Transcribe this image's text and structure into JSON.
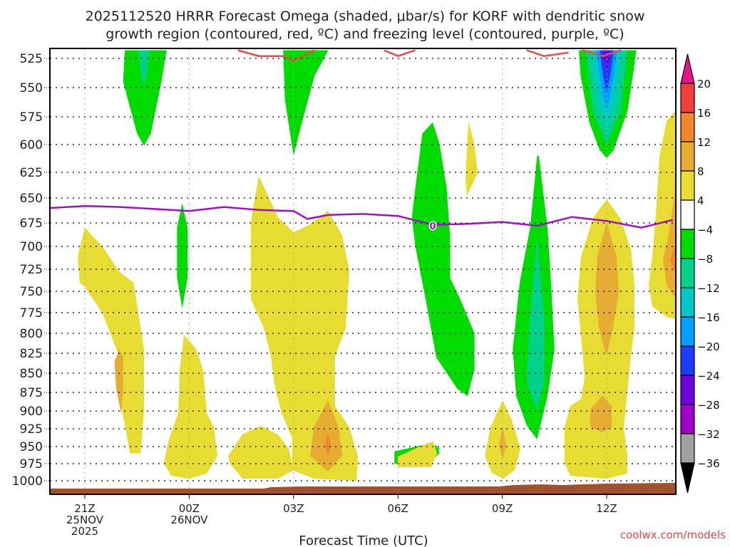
{
  "chart_data": {
    "type": "heatmap",
    "title_lines": [
      "2025112520 HRRR Forecast Omega (shaded, μbar/s) for KORF with dendritic snow",
      "growth region (contoured, red, ºC) and freezing level (contoured, purple, ºC)"
    ],
    "xlabel": "Forecast Time (UTC)",
    "ylabel": "",
    "credit": "coolwx.com/models",
    "y_axis": {
      "units": "hPa",
      "range": [
        525,
        1000
      ],
      "inverted": true,
      "ticks": [
        "525",
        "550",
        "575",
        "600",
        "625",
        "650",
        "675",
        "700",
        "725",
        "750",
        "775",
        "800",
        "825",
        "850",
        "875",
        "900",
        "925",
        "950",
        "975",
        "1000"
      ]
    },
    "x_axis": {
      "range_hours_from_21Z": [
        -1.0,
        16.9
      ],
      "ticks": [
        {
          "hour": 0,
          "lines": [
            "21Z",
            "25NOV",
            "2025"
          ]
        },
        {
          "hour": 3,
          "lines": [
            "00Z",
            "26NOV"
          ]
        },
        {
          "hour": 6,
          "lines": [
            "03Z"
          ]
        },
        {
          "hour": 9,
          "lines": [
            "06Z"
          ]
        },
        {
          "hour": 12,
          "lines": [
            "09Z"
          ]
        },
        {
          "hour": 15,
          "lines": [
            "12Z"
          ]
        }
      ]
    },
    "grid": true,
    "colorbar": {
      "placement": "right",
      "labels": [
        "20",
        "16",
        "12",
        "8",
        "4",
        "-4",
        "-8",
        "-12",
        "-16",
        "-20",
        "-24",
        "-28",
        "-32",
        "-36"
      ],
      "bins": [
        {
          "range": ">20",
          "color": "#e8148c"
        },
        {
          "range": "16 to 20",
          "color": "#f0403c"
        },
        {
          "range": "12 to 16",
          "color": "#f0872d"
        },
        {
          "range": "8 to 12",
          "color": "#e6ad32"
        },
        {
          "range": "4 to 8",
          "color": "#e6dc32"
        },
        {
          "range": "-4 to 4",
          "color": "#ffffff"
        },
        {
          "range": "-8 to -4",
          "color": "#00dc00"
        },
        {
          "range": "-12 to -8",
          "color": "#00d28c"
        },
        {
          "range": "-16 to -12",
          "color": "#00c8c8"
        },
        {
          "range": "-20 to -16",
          "color": "#00a0ff"
        },
        {
          "range": "-24 to -20",
          "color": "#1e3cff"
        },
        {
          "range": "-28 to -24",
          "color": "#6e00dc"
        },
        {
          "range": "-32 to -28",
          "color": "#a000c8"
        },
        {
          "range": "-36 to -32",
          "color": "#a0a0a0"
        },
        {
          "range": "<-36",
          "color": "#000000"
        }
      ]
    },
    "freezing_level": {
      "label": "0",
      "color": "#a010c8",
      "points_hour_hpa": [
        [
          -1.0,
          660
        ],
        [
          0,
          658
        ],
        [
          1,
          659
        ],
        [
          2,
          661
        ],
        [
          3,
          663
        ],
        [
          4,
          659
        ],
        [
          5,
          662
        ],
        [
          6,
          663
        ],
        [
          6.4,
          671
        ],
        [
          7,
          667
        ],
        [
          8,
          666
        ],
        [
          9,
          668
        ],
        [
          10,
          677
        ],
        [
          11,
          676
        ],
        [
          12,
          674
        ],
        [
          13,
          678
        ],
        [
          14,
          669
        ],
        [
          15,
          673
        ],
        [
          16,
          680
        ],
        [
          16.9,
          672
        ]
      ]
    },
    "dgz_contour": {
      "color": "#f04646",
      "segments_hour_hpa": [
        [
          [
            4.4,
            518
          ],
          [
            5,
            523
          ],
          [
            5.7,
            523
          ],
          [
            6,
            527
          ],
          [
            6.6,
            518
          ]
        ],
        [
          [
            8.6,
            518
          ],
          [
            9,
            523
          ],
          [
            9.5,
            518
          ]
        ],
        [
          [
            12.7,
            518
          ],
          [
            13.2,
            523
          ],
          [
            13.9,
            520
          ]
        ],
        [
          [
            14.3,
            518
          ],
          [
            14.9,
            523
          ],
          [
            15.4,
            518
          ]
        ]
      ]
    },
    "regions": [
      {
        "name": "green-blob-1",
        "value_range": "-8 to -4",
        "color": "#00dc00",
        "pts": [
          [
            1.15,
            518
          ],
          [
            1.1,
            545
          ],
          [
            1.5,
            590
          ],
          [
            1.7,
            601
          ],
          [
            1.9,
            590
          ],
          [
            2.2,
            545
          ],
          [
            2.35,
            518
          ]
        ]
      },
      {
        "name": "teal-1",
        "value_range": "-12 to -8",
        "color": "#00d28c",
        "pts": [
          [
            1.55,
            518
          ],
          [
            1.6,
            535
          ],
          [
            1.7,
            550
          ],
          [
            1.8,
            535
          ],
          [
            1.85,
            518
          ]
        ]
      },
      {
        "name": "green-blob-2",
        "value_range": "-8 to -4",
        "color": "#00dc00",
        "pts": [
          [
            2.65,
            680
          ],
          [
            2.8,
            655
          ],
          [
            2.95,
            680
          ],
          [
            2.95,
            735
          ],
          [
            2.8,
            770
          ],
          [
            2.65,
            735
          ]
        ]
      },
      {
        "name": "green-sliver",
        "value_range": "-8 to -4",
        "color": "#00dc00",
        "pts": [
          [
            2.95,
            830
          ],
          [
            3.0,
            810
          ],
          [
            3.05,
            830
          ],
          [
            3.0,
            850
          ]
        ]
      },
      {
        "name": "green-blob-3",
        "value_range": "-8 to -4",
        "color": "#00dc00",
        "pts": [
          [
            5.7,
            518
          ],
          [
            5.75,
            560
          ],
          [
            5.9,
            590
          ],
          [
            6.0,
            610
          ],
          [
            6.2,
            585
          ],
          [
            6.6,
            540
          ],
          [
            7.0,
            518
          ]
        ]
      },
      {
        "name": "green-blob-4",
        "value_range": "-8 to -4",
        "color": "#00dc00",
        "pts": [
          [
            9.7,
            590
          ],
          [
            9.5,
            640
          ],
          [
            9.4,
            670
          ],
          [
            9.5,
            700
          ],
          [
            9.8,
            760
          ],
          [
            10.1,
            830
          ],
          [
            10.7,
            870
          ],
          [
            11.0,
            880
          ],
          [
            11.2,
            845
          ],
          [
            11.2,
            800
          ],
          [
            10.8,
            760
          ],
          [
            10.5,
            735
          ],
          [
            10.5,
            690
          ],
          [
            10.4,
            640
          ],
          [
            10.2,
            600
          ],
          [
            10.0,
            580
          ]
        ]
      },
      {
        "name": "green-blob-5",
        "value_range": "-8 to -4",
        "color": "#00dc00",
        "pts": [
          [
            13.0,
            610
          ],
          [
            12.8,
            680
          ],
          [
            12.5,
            740
          ],
          [
            12.3,
            820
          ],
          [
            12.4,
            880
          ],
          [
            12.7,
            920
          ],
          [
            13.0,
            940
          ],
          [
            13.3,
            880
          ],
          [
            13.5,
            820
          ],
          [
            13.4,
            740
          ],
          [
            13.3,
            680
          ],
          [
            13.05,
            610
          ]
        ]
      },
      {
        "name": "teal-5",
        "value_range": "-12 to -8",
        "color": "#00d28c",
        "pts": [
          [
            13.0,
            690
          ],
          [
            12.8,
            780
          ],
          [
            12.7,
            860
          ],
          [
            13.0,
            900
          ],
          [
            13.2,
            860
          ],
          [
            13.2,
            780
          ]
        ]
      },
      {
        "name": "green-blob-6",
        "value_range": "-8 to -4",
        "color": "#00dc00",
        "pts": [
          [
            14.2,
            518
          ],
          [
            14.25,
            540
          ],
          [
            14.5,
            580
          ],
          [
            14.8,
            605
          ],
          [
            15.0,
            612
          ],
          [
            15.2,
            605
          ],
          [
            15.6,
            570
          ],
          [
            15.8,
            530
          ],
          [
            15.85,
            518
          ]
        ]
      },
      {
        "name": "teal-6",
        "value_range": "-12 to -8",
        "color": "#00d28c",
        "pts": [
          [
            14.4,
            518
          ],
          [
            14.6,
            570
          ],
          [
            15.0,
            600
          ],
          [
            15.4,
            570
          ],
          [
            15.6,
            518
          ]
        ]
      },
      {
        "name": "cyan-6",
        "value_range": "-16 to -12",
        "color": "#00c8c8",
        "pts": [
          [
            14.55,
            518
          ],
          [
            14.75,
            560
          ],
          [
            15.0,
            585
          ],
          [
            15.25,
            560
          ],
          [
            15.45,
            518
          ]
        ]
      },
      {
        "name": "ltblue-6",
        "value_range": "-20 to -16",
        "color": "#00a0ff",
        "pts": [
          [
            14.7,
            518
          ],
          [
            14.85,
            550
          ],
          [
            15.0,
            570
          ],
          [
            15.15,
            550
          ],
          [
            15.3,
            518
          ]
        ]
      },
      {
        "name": "blue-6",
        "value_range": "-24 to -20",
        "color": "#1e3cff",
        "pts": [
          [
            14.8,
            518
          ],
          [
            14.9,
            540
          ],
          [
            15.0,
            555
          ],
          [
            15.1,
            540
          ],
          [
            15.2,
            518
          ]
        ]
      },
      {
        "name": "purple-6",
        "value_range": "-28 to -24",
        "color": "#6e00dc",
        "pts": [
          [
            14.9,
            518
          ],
          [
            14.95,
            530
          ],
          [
            15.0,
            537
          ],
          [
            15.05,
            530
          ],
          [
            15.1,
            518
          ]
        ]
      },
      {
        "name": "yellow-1",
        "value_range": "4 to 8",
        "color": "#e6dc32",
        "pts": [
          [
            0,
            680
          ],
          [
            -0.2,
            710
          ],
          [
            -0.15,
            740
          ],
          [
            0.0,
            745
          ],
          [
            0.5,
            775
          ],
          [
            1.0,
            830
          ],
          [
            1.0,
            880
          ],
          [
            1.3,
            960
          ],
          [
            1.6,
            960
          ],
          [
            1.7,
            900
          ],
          [
            1.7,
            820
          ],
          [
            1.4,
            740
          ],
          [
            1.0,
            728
          ],
          [
            0.5,
            700
          ]
        ]
      },
      {
        "name": "orange-1",
        "value_range": "8 to 12",
        "color": "#e6ad32",
        "pts": [
          [
            1.0,
            820
          ],
          [
            0.85,
            835
          ],
          [
            0.9,
            870
          ],
          [
            1.05,
            905
          ],
          [
            1.1,
            870
          ],
          [
            1.1,
            830
          ]
        ]
      },
      {
        "name": "green-blob-7",
        "value_range": "-8 to -4",
        "color": "#00dc00",
        "pts": [
          [
            8.9,
            957
          ],
          [
            8.9,
            975
          ],
          [
            9.7,
            978
          ],
          [
            10.1,
            965
          ],
          [
            10.2,
            952
          ],
          [
            9.7,
            948
          ]
        ]
      },
      {
        "name": "green-blob-8",
        "value_range": "-8 to -4",
        "color": "#00dc00",
        "pts": [
          [
            8.9,
            960
          ],
          [
            8.9,
            975
          ],
          [
            9.7,
            975
          ],
          [
            10.2,
            960
          ],
          [
            10.1,
            948
          ]
        ]
      }
    ]
  }
}
